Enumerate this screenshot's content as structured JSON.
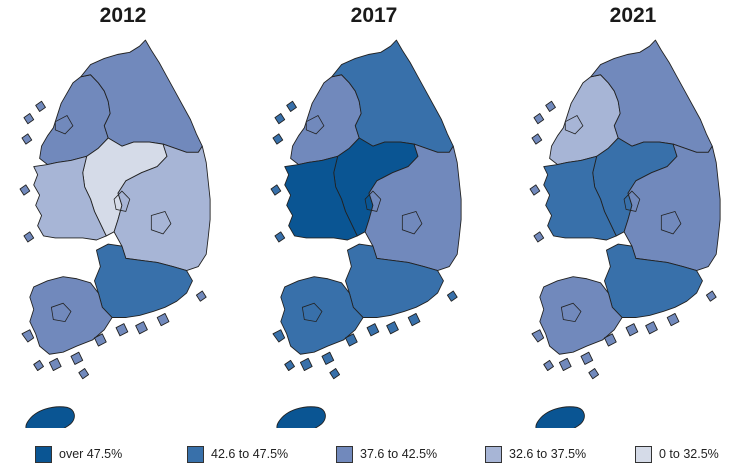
{
  "colors": {
    "c1": "#0a5593",
    "c2": "#3870aa",
    "c3": "#7189bc",
    "c4": "#a7b5d6",
    "c5": "#d5dbe8"
  },
  "maps": [
    {
      "title": "2012",
      "regions": {
        "gyeonggi": "c3",
        "gangwon": "c3",
        "chungnam": "c4",
        "chungbuk": "c5",
        "gyeongbuk": "c4",
        "gyeongnam": "c2",
        "jeonnam": "c3",
        "jeju": "c1"
      }
    },
    {
      "title": "2017",
      "regions": {
        "gyeonggi": "c3",
        "gangwon": "c2",
        "chungnam": "c1",
        "chungbuk": "c1",
        "gyeongbuk": "c3",
        "gyeongnam": "c2",
        "jeonnam": "c2",
        "jeju": "c1"
      }
    },
    {
      "title": "2021",
      "regions": {
        "gyeonggi": "c4",
        "gangwon": "c3",
        "chungnam": "c2",
        "chungbuk": "c2",
        "gyeongbuk": "c3",
        "gyeongnam": "c2",
        "jeonnam": "c3",
        "jeju": "c1"
      }
    }
  ],
  "legend": [
    {
      "label": "over 47.5%",
      "color": "c1"
    },
    {
      "label": "42.6 to 47.5%",
      "color": "c2"
    },
    {
      "label": "37.6 to 42.5%",
      "color": "c3"
    },
    {
      "label": "32.6 to 37.5%",
      "color": "c4"
    },
    {
      "label": "0 to 32.5%",
      "color": "c5"
    }
  ]
}
